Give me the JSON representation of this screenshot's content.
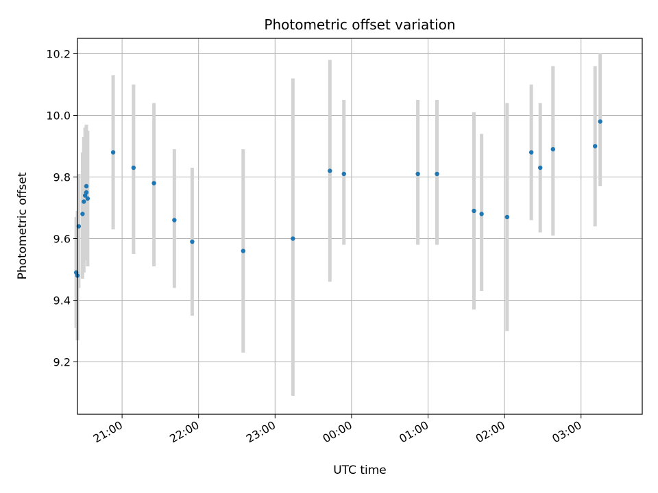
{
  "chart_data": {
    "type": "scatter",
    "title": "Photometric offset variation",
    "xlabel": "UTC time",
    "ylabel": "Photometric offset",
    "x_is_time": true,
    "xlim": [
      "20:25",
      "03:48"
    ],
    "ylim": [
      9.03,
      10.25
    ],
    "grid": true,
    "x_ticks": [
      "21:00",
      "22:00",
      "23:00",
      "00:00",
      "01:00",
      "02:00",
      "03:00"
    ],
    "y_ticks": [
      "9.2",
      "9.4",
      "9.6",
      "9.8",
      "10.0",
      "10.2"
    ],
    "y_tick_values": [
      9.2,
      9.4,
      9.6,
      9.8,
      10.0,
      10.2
    ],
    "colors": {
      "point": "#1f77b4",
      "errorbar": "#d3d3d3",
      "grid": "#b0b0b0"
    },
    "points": [
      {
        "x": "20:24",
        "y": 9.49,
        "err_low": 9.31,
        "err_high": 9.67
      },
      {
        "x": "20:25",
        "y": 9.48,
        "err_low": 9.27,
        "err_high": 9.69
      },
      {
        "x": "20:26",
        "y": 9.64,
        "err_low": 9.44,
        "err_high": 9.81
      },
      {
        "x": "20:29",
        "y": 9.68,
        "err_low": 9.47,
        "err_high": 9.88
      },
      {
        "x": "20:30",
        "y": 9.72,
        "err_low": 9.49,
        "err_high": 9.93
      },
      {
        "x": "20:31",
        "y": 9.74,
        "err_low": 9.53,
        "err_high": 9.96
      },
      {
        "x": "20:32",
        "y": 9.75,
        "err_low": 9.54,
        "err_high": 9.97
      },
      {
        "x": "20:32",
        "y": 9.77,
        "err_low": 9.56,
        "err_high": 9.97
      },
      {
        "x": "20:33",
        "y": 9.73,
        "err_low": 9.51,
        "err_high": 9.95
      },
      {
        "x": "20:53",
        "y": 9.88,
        "err_low": 9.63,
        "err_high": 10.13
      },
      {
        "x": "21:09",
        "y": 9.83,
        "err_low": 9.55,
        "err_high": 10.1
      },
      {
        "x": "21:25",
        "y": 9.78,
        "err_low": 9.51,
        "err_high": 10.04
      },
      {
        "x": "21:41",
        "y": 9.66,
        "err_low": 9.44,
        "err_high": 9.89
      },
      {
        "x": "21:55",
        "y": 9.59,
        "err_low": 9.35,
        "err_high": 9.83
      },
      {
        "x": "22:35",
        "y": 9.56,
        "err_low": 9.23,
        "err_high": 9.89
      },
      {
        "x": "23:14",
        "y": 9.6,
        "err_low": 9.09,
        "err_high": 10.12
      },
      {
        "x": "23:43",
        "y": 9.82,
        "err_low": 9.46,
        "err_high": 10.18
      },
      {
        "x": "23:54",
        "y": 9.81,
        "err_low": 9.58,
        "err_high": 10.05
      },
      {
        "x": "00:52",
        "y": 9.81,
        "err_low": 9.58,
        "err_high": 10.05
      },
      {
        "x": "01:07",
        "y": 9.81,
        "err_low": 9.58,
        "err_high": 10.05
      },
      {
        "x": "01:36",
        "y": 9.69,
        "err_low": 9.37,
        "err_high": 10.01
      },
      {
        "x": "01:42",
        "y": 9.68,
        "err_low": 9.43,
        "err_high": 9.94
      },
      {
        "x": "02:02",
        "y": 9.67,
        "err_low": 9.3,
        "err_high": 10.04
      },
      {
        "x": "02:21",
        "y": 9.88,
        "err_low": 9.66,
        "err_high": 10.1
      },
      {
        "x": "02:28",
        "y": 9.83,
        "err_low": 9.62,
        "err_high": 10.04
      },
      {
        "x": "02:38",
        "y": 9.89,
        "err_low": 9.61,
        "err_high": 10.16
      },
      {
        "x": "03:11",
        "y": 9.9,
        "err_low": 9.64,
        "err_high": 10.16
      },
      {
        "x": "03:15",
        "y": 9.98,
        "err_low": 9.77,
        "err_high": 10.2
      }
    ]
  }
}
